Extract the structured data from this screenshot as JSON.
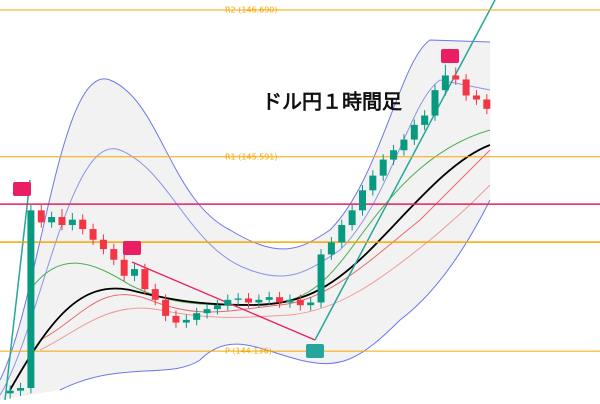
{
  "chart_data": {
    "type": "candlestick",
    "title": "ドル円１時間足",
    "ylim": [
      143.74,
      146.765
    ],
    "up_color": "#089981",
    "down_color": "#f23645",
    "open": [
      143.82,
      143.84,
      143.86,
      145.19,
      145.1,
      145.14,
      145.08,
      145.12,
      145.05,
      144.97,
      144.9,
      144.82,
      144.7,
      144.75,
      144.6,
      144.52,
      144.4,
      144.35,
      144.37,
      144.42,
      144.45,
      144.48,
      144.52,
      144.53,
      144.5,
      144.52,
      144.54,
      144.5,
      144.52,
      144.48,
      144.5,
      144.86,
      144.95,
      145.08,
      145.19,
      145.34,
      145.45,
      145.57,
      145.64,
      145.72,
      145.83,
      145.9,
      146.09,
      146.2,
      146.17,
      146.05,
      146.02
    ],
    "high": [
      143.88,
      143.9,
      145.23,
      145.24,
      145.18,
      145.2,
      145.17,
      145.16,
      145.09,
      145.01,
      144.94,
      144.86,
      144.79,
      144.79,
      144.64,
      144.56,
      144.44,
      144.41,
      144.46,
      144.49,
      144.52,
      144.56,
      144.57,
      144.57,
      144.56,
      144.58,
      144.58,
      144.56,
      144.56,
      144.54,
      144.9,
      144.99,
      145.12,
      145.23,
      145.38,
      145.49,
      145.61,
      145.68,
      145.76,
      145.87,
      145.94,
      146.13,
      146.28,
      146.26,
      146.21,
      146.09,
      146.06
    ],
    "low": [
      143.78,
      143.8,
      143.82,
      145.06,
      145.06,
      145.04,
      145.04,
      145.01,
      144.93,
      144.86,
      144.78,
      144.66,
      144.66,
      144.56,
      144.48,
      144.36,
      144.31,
      144.31,
      144.33,
      144.38,
      144.41,
      144.44,
      144.48,
      144.46,
      144.46,
      144.48,
      144.46,
      144.46,
      144.44,
      144.44,
      144.46,
      144.82,
      144.91,
      145.04,
      145.15,
      145.3,
      145.41,
      145.53,
      145.6,
      145.68,
      145.79,
      145.86,
      146.05,
      146.13,
      146.01,
      145.98,
      145.91
    ],
    "close": [
      143.84,
      143.86,
      145.19,
      145.1,
      145.14,
      145.08,
      145.12,
      145.05,
      144.97,
      144.9,
      144.82,
      144.7,
      144.75,
      144.6,
      144.52,
      144.4,
      144.35,
      144.37,
      144.42,
      144.45,
      144.48,
      144.52,
      144.53,
      144.5,
      144.52,
      144.54,
      144.5,
      144.52,
      144.48,
      144.5,
      144.86,
      144.95,
      145.08,
      145.19,
      145.34,
      145.45,
      145.57,
      145.64,
      145.72,
      145.83,
      145.9,
      146.09,
      146.2,
      146.17,
      146.05,
      146.02,
      145.95
    ],
    "levels": [
      {
        "label": "R2 (146.690)",
        "value": 146.69,
        "color": "#f7a600"
      },
      {
        "label": "R1 (145.591)",
        "value": 145.591,
        "color": "#f7a600"
      },
      {
        "label": "P (144.136)",
        "value": 144.136,
        "color": "#f7a600"
      },
      {
        "value": 145.237,
        "color": "#e91e63"
      },
      {
        "value": 144.952,
        "color": "#f7a600"
      }
    ]
  }
}
